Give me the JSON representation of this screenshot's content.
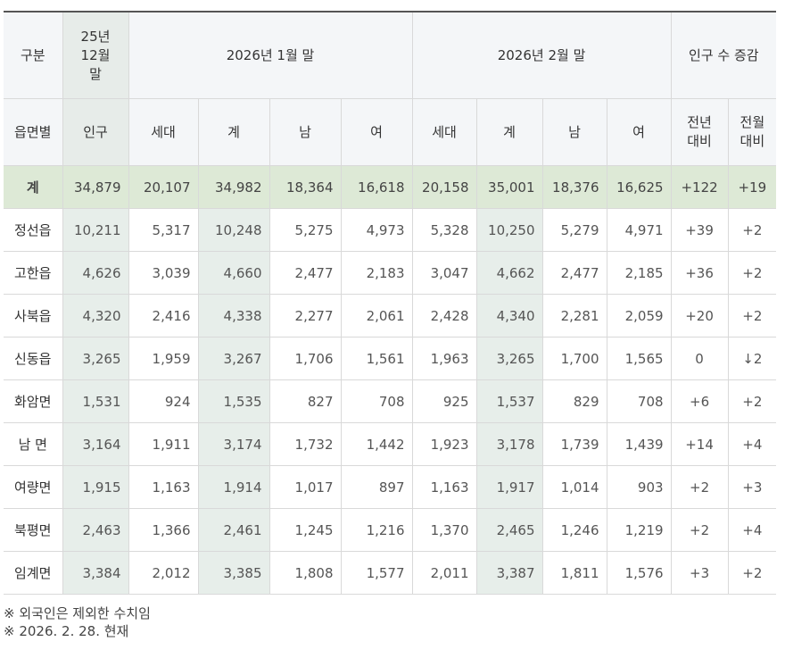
{
  "header": {
    "group": "구분",
    "dec_line1": "25년",
    "dec_line2": "12월",
    "dec_line3": "말",
    "jan": "2026년 1월 말",
    "feb": "2026년 2월 말",
    "change": "인구 수 증감",
    "district": "읍면별",
    "population": "인구",
    "households": "세대",
    "total": "계",
    "male": "남",
    "female": "여",
    "yoy_line1": "전년",
    "yoy_line2": "대비",
    "mom_line1": "전월",
    "mom_line2": "대비"
  },
  "rows": [
    {
      "name": "계",
      "dec_pop": "34,879",
      "jan_hh": "20,107",
      "jan_total": "34,982",
      "jan_male": "18,364",
      "jan_female": "16,618",
      "feb_hh": "20,158",
      "feb_total": "35,001",
      "feb_male": "18,376",
      "feb_female": "16,625",
      "yoy": "+122",
      "mom": "+19"
    },
    {
      "name": "정선읍",
      "dec_pop": "10,211",
      "jan_hh": "5,317",
      "jan_total": "10,248",
      "jan_male": "5,275",
      "jan_female": "4,973",
      "feb_hh": "5,328",
      "feb_total": "10,250",
      "feb_male": "5,279",
      "feb_female": "4,971",
      "yoy": "+39",
      "mom": "+2"
    },
    {
      "name": "고한읍",
      "dec_pop": "4,626",
      "jan_hh": "3,039",
      "jan_total": "4,660",
      "jan_male": "2,477",
      "jan_female": "2,183",
      "feb_hh": "3,047",
      "feb_total": "4,662",
      "feb_male": "2,477",
      "feb_female": "2,185",
      "yoy": "+36",
      "mom": "+2"
    },
    {
      "name": "사북읍",
      "dec_pop": "4,320",
      "jan_hh": "2,416",
      "jan_total": "4,338",
      "jan_male": "2,277",
      "jan_female": "2,061",
      "feb_hh": "2,428",
      "feb_total": "4,340",
      "feb_male": "2,281",
      "feb_female": "2,059",
      "yoy": "+20",
      "mom": "+2"
    },
    {
      "name": "신동읍",
      "dec_pop": "3,265",
      "jan_hh": "1,959",
      "jan_total": "3,267",
      "jan_male": "1,706",
      "jan_female": "1,561",
      "feb_hh": "1,963",
      "feb_total": "3,265",
      "feb_male": "1,700",
      "feb_female": "1,565",
      "yoy": "0",
      "mom": "↓2"
    },
    {
      "name": "화암면",
      "dec_pop": "1,531",
      "jan_hh": "924",
      "jan_total": "1,535",
      "jan_male": "827",
      "jan_female": "708",
      "feb_hh": "925",
      "feb_total": "1,537",
      "feb_male": "829",
      "feb_female": "708",
      "yoy": "+6",
      "mom": "+2"
    },
    {
      "name": "남 면",
      "dec_pop": "3,164",
      "jan_hh": "1,911",
      "jan_total": "3,174",
      "jan_male": "1,732",
      "jan_female": "1,442",
      "feb_hh": "1,923",
      "feb_total": "3,178",
      "feb_male": "1,739",
      "feb_female": "1,439",
      "yoy": "+14",
      "mom": "+4"
    },
    {
      "name": "여량면",
      "dec_pop": "1,915",
      "jan_hh": "1,163",
      "jan_total": "1,914",
      "jan_male": "1,017",
      "jan_female": "897",
      "feb_hh": "1,163",
      "feb_total": "1,917",
      "feb_male": "1,014",
      "feb_female": "903",
      "yoy": "+2",
      "mom": "+3"
    },
    {
      "name": "북평면",
      "dec_pop": "2,463",
      "jan_hh": "1,366",
      "jan_total": "2,461",
      "jan_male": "1,245",
      "jan_female": "1,216",
      "feb_hh": "1,370",
      "feb_total": "2,465",
      "feb_male": "1,246",
      "feb_female": "1,219",
      "yoy": "+2",
      "mom": "+4"
    },
    {
      "name": "임계면",
      "dec_pop": "3,384",
      "jan_hh": "2,012",
      "jan_total": "3,385",
      "jan_male": "1,808",
      "jan_female": "1,577",
      "feb_hh": "2,011",
      "feb_total": "3,387",
      "feb_male": "1,811",
      "feb_female": "1,576",
      "yoy": "+3",
      "mom": "+2"
    }
  ],
  "notes": [
    "※ 외국인은 제외한 수치임",
    "※ 2026. 2. 28. 현재"
  ]
}
